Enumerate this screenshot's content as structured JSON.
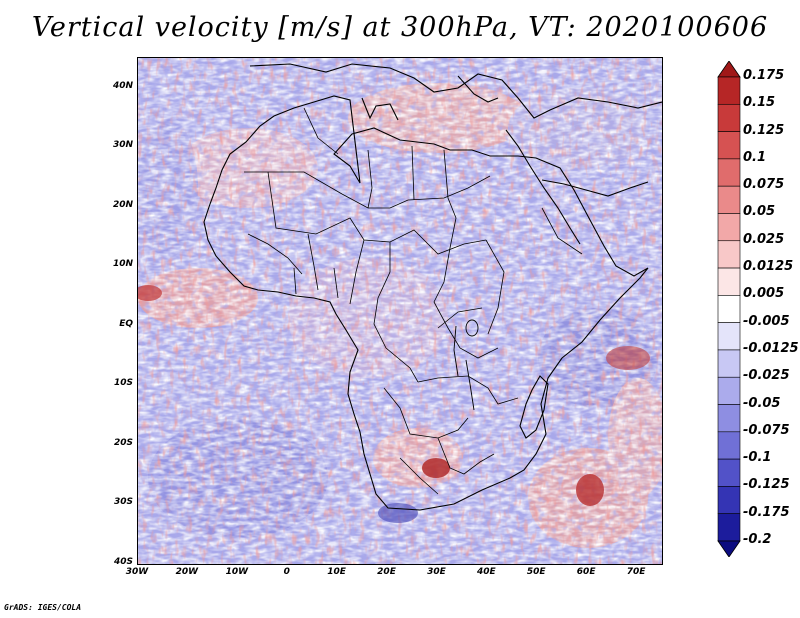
{
  "title": "Vertical velocity [m/s] at 300hPa, VT: 2020100606",
  "map": {
    "lat_labels": [
      "40N",
      "30N",
      "20N",
      "10N",
      "EQ",
      "10S",
      "20S",
      "30S",
      "40S"
    ],
    "lat_values": [
      40,
      30,
      20,
      10,
      0,
      -10,
      -20,
      -30,
      -40
    ],
    "lon_labels": [
      "30W",
      "20W",
      "10W",
      "0",
      "10E",
      "20E",
      "30E",
      "40E",
      "50E",
      "60E",
      "70E"
    ],
    "lon_values": [
      -30,
      -20,
      -10,
      0,
      10,
      20,
      30,
      40,
      50,
      60,
      70
    ],
    "lon_range": [
      -30,
      75
    ],
    "lat_range": [
      -40,
      45
    ]
  },
  "colorbar": {
    "labels": [
      "0.175",
      "0.15",
      "0.125",
      "0.1",
      "0.075",
      "0.05",
      "0.025",
      "0.0125",
      "0.005",
      "-0.005",
      "-0.0125",
      "-0.025",
      "-0.05",
      "-0.075",
      "-0.1",
      "-0.125",
      "-0.175",
      "-0.2"
    ],
    "colors": [
      "#a01818",
      "#b62626",
      "#c83a3a",
      "#d65252",
      "#e06c6c",
      "#ea8a8a",
      "#f2a8a8",
      "#f8c8c8",
      "#fce6e6",
      "#ffffff",
      "#e4e4fa",
      "#c8c8f4",
      "#ababec",
      "#8e8ee2",
      "#7070d6",
      "#5252c8",
      "#3434b4",
      "#1c1c9c",
      "#0c0c80"
    ]
  },
  "credit": "GrADS: IGES/COLA"
}
